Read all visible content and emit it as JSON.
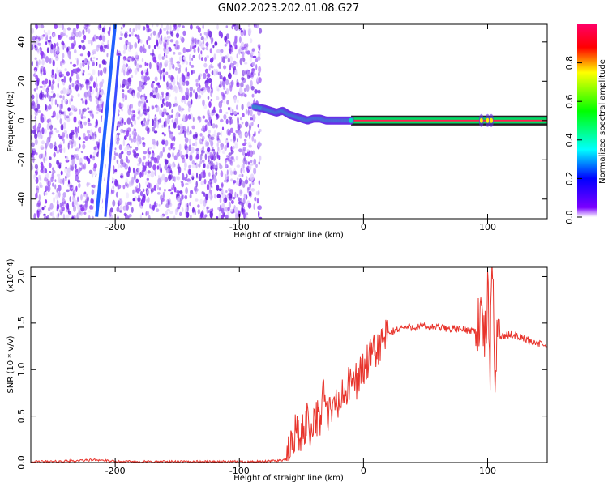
{
  "chart_data": [
    {
      "type": "heatmap",
      "title": "GN02.2023.202.01.08.G27",
      "xlabel": "Height of straight line (km)",
      "ylabel": "Frequency (Hz)",
      "xlim": [
        -268,
        148
      ],
      "ylim": [
        -50,
        49
      ],
      "x_ticks": [
        -200,
        -100,
        0,
        100
      ],
      "y_ticks": [
        -40,
        -20,
        0,
        20,
        40
      ],
      "grid": false,
      "colorbar": {
        "label": "Normalized spectral amplitude",
        "range": [
          0,
          1
        ],
        "ticks": [
          "0.0",
          "0.2",
          "0.4",
          "0.6",
          "0.8"
        ],
        "colors": [
          "#ffffff",
          "#7b00ff",
          "#0000ff",
          "#00ffff",
          "#00ff00",
          "#ffff00",
          "#ff0000",
          "#ff0066"
        ]
      },
      "noise_region_x": [
        -268,
        -83
      ],
      "streak_1": {
        "x": [
          -215,
          -200
        ],
        "y": [
          -49,
          49
        ]
      },
      "streak_2": {
        "x": [
          -208,
          -197
        ],
        "y": [
          -49,
          33
        ]
      },
      "signal_trace": {
        "x": [
          -88,
          -80,
          -75,
          -70,
          -65,
          -60,
          -55,
          -50,
          -45,
          -40,
          -35,
          -30,
          -25,
          -20,
          -15,
          -10,
          0,
          50,
          90,
          100,
          110,
          148
        ],
        "y": [
          7,
          6,
          5,
          4,
          5,
          3,
          2,
          1,
          0,
          1,
          1,
          0,
          0,
          0,
          0,
          0,
          0,
          0,
          0,
          0,
          0,
          0
        ]
      },
      "band_x": [
        -10,
        148
      ],
      "band_halfwidth_hz": 2.5
    },
    {
      "type": "line",
      "title": "",
      "xlabel": "Height of straight line (km)",
      "ylabel": "SNR (10 * v/v)",
      "y_multiplier": "(x10^4)",
      "xlim": [
        -268,
        148
      ],
      "ylim": [
        0,
        2.1
      ],
      "x_ticks": [
        -200,
        -100,
        0,
        100
      ],
      "y_ticks": [
        "0.0",
        "0.5",
        "1.0",
        "1.5",
        "2.0"
      ],
      "grid": false,
      "series": [
        {
          "color": "#e8342c",
          "x": [
            -268,
            -250,
            -230,
            -215,
            -200,
            -150,
            -100,
            -80,
            -62,
            -58,
            -55,
            -50,
            -45,
            -42,
            -40,
            -35,
            -32,
            -30,
            -28,
            -25,
            -22,
            -20,
            -15,
            -10,
            -5,
            0,
            5,
            10,
            15,
            20,
            25,
            30,
            40,
            50,
            60,
            70,
            80,
            90,
            95,
            98,
            100,
            102,
            104,
            106,
            108,
            110,
            120,
            130,
            140,
            148
          ],
          "y": [
            0.01,
            0.01,
            0.02,
            0.03,
            0.01,
            0.01,
            0.01,
            0.01,
            0.03,
            0.2,
            0.35,
            0.25,
            0.5,
            0.3,
            0.55,
            0.4,
            0.9,
            0.45,
            0.55,
            0.5,
            0.7,
            0.6,
            0.75,
            0.85,
            0.9,
            1.0,
            1.1,
            1.2,
            1.3,
            1.38,
            1.42,
            1.45,
            1.46,
            1.46,
            1.45,
            1.44,
            1.43,
            1.42,
            1.55,
            1.3,
            1.8,
            1.1,
            2.05,
            0.9,
            1.6,
            1.35,
            1.38,
            1.33,
            1.28,
            1.25
          ]
        }
      ]
    }
  ]
}
